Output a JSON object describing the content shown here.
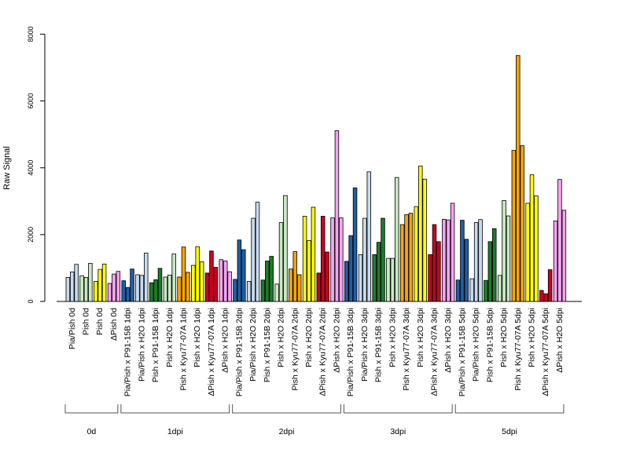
{
  "chart_data": {
    "type": "bar",
    "ylabel": "Raw Signal",
    "ylim": [
      0,
      8000
    ],
    "yticks": [
      0,
      2000,
      4000,
      6000,
      8000
    ],
    "bar_border_color": "#000000",
    "categories": [
      "Pia/Pish 0d",
      "Pish 0d",
      "Pish 0d",
      "ΔPish 0d",
      "Pia/Pish x P91-15B 1dpi",
      "Pia/Pish x H2O 1dpi",
      "Pish x P91-15B 1dpi",
      "Pish x H2O 1dpi",
      "Pish x Kyu77-07A 1dpi",
      "Pish x H2O 1dpi",
      "ΔPish x Kyu77-07A 1dpi",
      "ΔPish x H2O 1dpi",
      "Pia/Pish x P91-15B 2dpi",
      "Pia/Pish x H2O 2dpi",
      "Pish x P91-15B 2dpi",
      "Pish x H2O 2dpi",
      "Pish x Kyu77-07A 2dpi",
      "Pish x H2O 2dpi",
      "ΔPish x Kyu77-07A 2dpi",
      "ΔPish x H2O 2dpi",
      "Pia/Pish x P91-15B 3dpi",
      "Pia/Pish x H2O 3dpi",
      "Pish x P91-15B 3dpi",
      "Pish x H2O 3dpi",
      "Pish x Kyu77-07A 3dpi",
      "Pish x H2O 3dpi",
      "ΔPish x Kyu77-07A 3dpi",
      "ΔPish x H2O 3dpi",
      "Pia/Pish x P91-15B 5dpi",
      "Pia/Pish x H2O 5dpi",
      "Pish x P91-15B 5dpi",
      "Pish x H2O 5dpi",
      "Pish x Kyu77-07A 5dpi",
      "Pish x H2O 5dpi",
      "ΔPish x Kyu77-07A 5dpi",
      "ΔPish x H2O 5dpi"
    ],
    "category_colors": [
      "#c6dbef",
      "#c7e9c0",
      "#ffff00",
      "#f5a3f0",
      "#1f5ea8",
      "#c6dbef",
      "#1e7b2a",
      "#c7e9c0",
      "#f5a500",
      "#ffff00",
      "#cc0020",
      "#f5a3f0",
      "#1f5ea8",
      "#c6dbef",
      "#1e7b2a",
      "#c7e9c0",
      "#f5a500",
      "#ffff00",
      "#cc0020",
      "#f5a3f0",
      "#1f5ea8",
      "#c6dbef",
      "#1e7b2a",
      "#c7e9c0",
      "#f5a500",
      "#ffff00",
      "#cc0020",
      "#f5a3f0",
      "#1f5ea8",
      "#c6dbef",
      "#1e7b2a",
      "#c7e9c0",
      "#f5a500",
      "#ffff00",
      "#cc0020",
      "#f5a3f0"
    ],
    "values": [
      [
        720,
        880,
        1110
      ],
      [
        770,
        720,
        1140
      ],
      [
        600,
        960,
        1120
      ],
      [
        540,
        820,
        900
      ],
      [
        620,
        420,
        970
      ],
      [
        800,
        780,
        1450
      ],
      [
        560,
        650,
        990
      ],
      [
        730,
        790,
        1420
      ],
      [
        730,
        1630,
        870
      ],
      [
        1080,
        1640,
        1190
      ],
      [
        850,
        1510,
        1020
      ],
      [
        1250,
        1210,
        890
      ],
      [
        660,
        1840,
        1550
      ],
      [
        600,
        2490,
        2970
      ],
      [
        640,
        1210,
        1350
      ],
      [
        520,
        2360,
        3170
      ],
      [
        970,
        1490,
        800
      ],
      [
        2550,
        1820,
        2820
      ],
      [
        850,
        2550,
        1480
      ],
      [
        2500,
        5110,
        2500
      ],
      [
        1200,
        1970,
        3400
      ],
      [
        1400,
        2490,
        3880
      ],
      [
        1400,
        1770,
        2490
      ],
      [
        1290,
        1290,
        3710
      ],
      [
        2300,
        2600,
        2640
      ],
      [
        2840,
        4050,
        3660
      ],
      [
        1400,
        2300,
        1790
      ],
      [
        2460,
        2440,
        2940
      ],
      [
        640,
        2430,
        1860
      ],
      [
        680,
        2360,
        2450
      ],
      [
        630,
        1790,
        2180
      ],
      [
        780,
        3020,
        2560
      ],
      [
        4520,
        7360,
        4660
      ],
      [
        2940,
        3790,
        3160
      ],
      [
        330,
        230,
        950
      ],
      [
        2410,
        3650,
        2730
      ]
    ],
    "groups": [
      {
        "label": "0d",
        "start": 0,
        "end": 3
      },
      {
        "label": "1dpi",
        "start": 4,
        "end": 11
      },
      {
        "label": "2dpi",
        "start": 12,
        "end": 19
      },
      {
        "label": "3dpi",
        "start": 20,
        "end": 27
      },
      {
        "label": "5dpi",
        "start": 28,
        "end": 35
      }
    ]
  }
}
